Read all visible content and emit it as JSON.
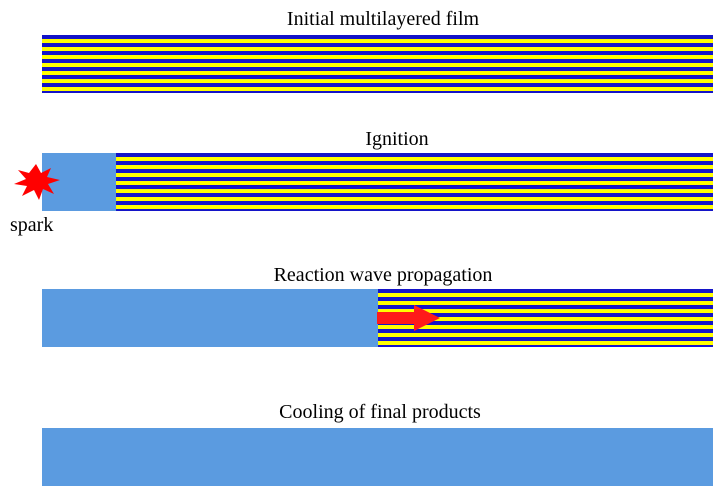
{
  "colors": {
    "layer_dark": "#1414c8",
    "layer_light": "#ffff00",
    "product": "#5b9be0",
    "spark": "#ff0000",
    "arrow": "#ff1a1a",
    "text": "#000000"
  },
  "stages": [
    {
      "title": "Initial multilayered film",
      "reacted_fraction": 0.0
    },
    {
      "title": "Ignition",
      "reacted_fraction": 0.11
    },
    {
      "title": "Reaction wave propagation",
      "reacted_fraction": 0.5
    },
    {
      "title": "Cooling of final products",
      "reacted_fraction": 1.0
    }
  ],
  "spark_label": "spark",
  "icons": {
    "spark": "spark-burst-icon",
    "propagation": "arrow-right-icon"
  }
}
